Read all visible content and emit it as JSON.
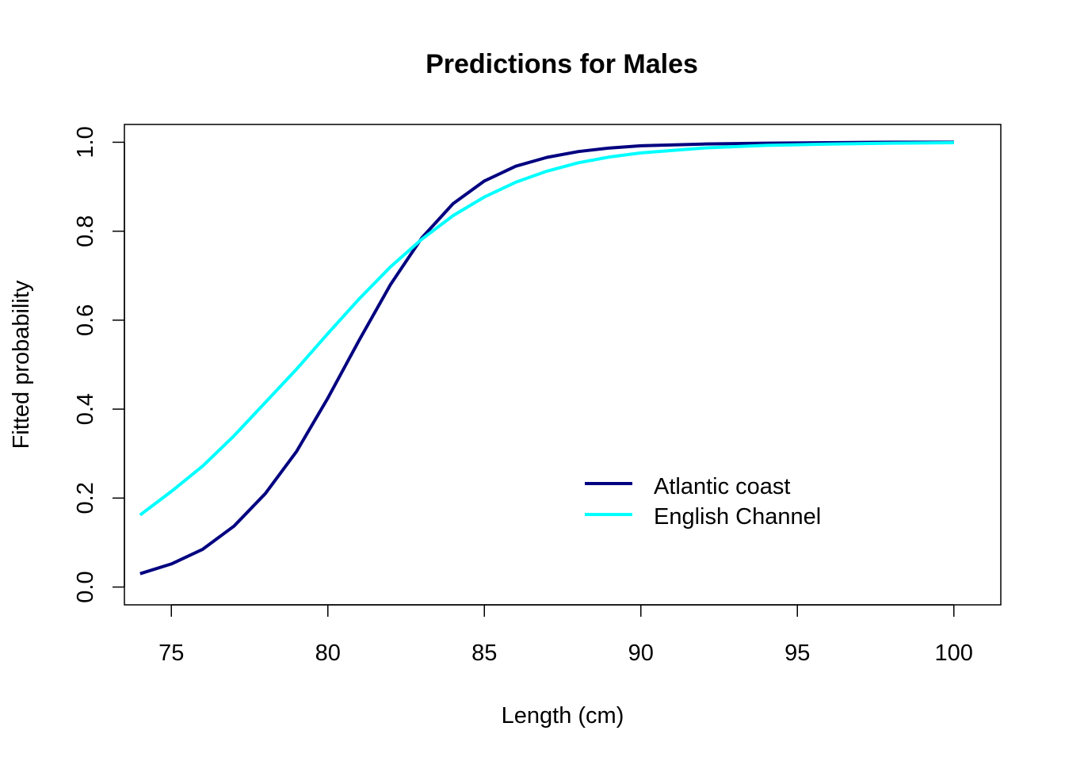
{
  "chart_data": {
    "type": "line",
    "title": "Predictions for Males",
    "xlabel": "Length (cm)",
    "ylabel": "Fitted probability",
    "xlim": [
      73.5,
      101.5
    ],
    "ylim": [
      -0.04,
      1.04
    ],
    "x_ticks": [
      75,
      80,
      85,
      90,
      95,
      100
    ],
    "y_ticks": [
      0.0,
      0.2,
      0.4,
      0.6,
      0.8,
      1.0
    ],
    "x_tick_labels": [
      "75",
      "80",
      "85",
      "90",
      "95",
      "100"
    ],
    "y_tick_labels": [
      "0.0",
      "0.2",
      "0.4",
      "0.6",
      "0.8",
      "1.0"
    ],
    "grid": false,
    "legend_position": "bottom-right inside",
    "x": [
      74,
      75,
      76,
      77,
      78,
      79,
      80,
      81,
      82,
      83,
      84,
      85,
      86,
      87,
      88,
      89,
      90,
      92,
      94,
      96,
      98,
      100
    ],
    "series": [
      {
        "name": "Atlantic coast",
        "color": "#000080",
        "values": [
          0.03,
          0.052,
          0.085,
          0.137,
          0.21,
          0.305,
          0.425,
          0.555,
          0.68,
          0.785,
          0.862,
          0.913,
          0.946,
          0.966,
          0.979,
          0.987,
          0.992,
          0.996,
          0.998,
          0.999,
          1.0,
          1.0
        ]
      },
      {
        "name": "English Channel",
        "color": "#00FFFF",
        "values": [
          0.162,
          0.215,
          0.272,
          0.34,
          0.415,
          0.49,
          0.57,
          0.648,
          0.72,
          0.782,
          0.835,
          0.877,
          0.91,
          0.935,
          0.954,
          0.967,
          0.976,
          0.987,
          0.993,
          0.996,
          0.998,
          0.999
        ]
      }
    ]
  }
}
